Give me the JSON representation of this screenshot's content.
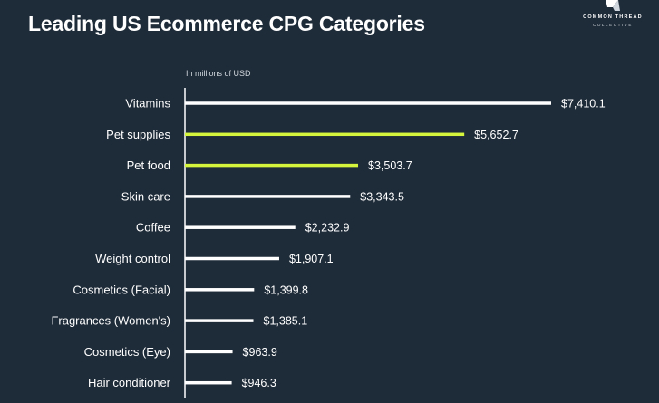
{
  "title": "Leading US Ecommerce CPG Categories",
  "logo": {
    "name": "COMMON THREAD",
    "sub": "COLLECTIVE"
  },
  "colors": {
    "background": "#1e2b38",
    "bar_default": "#ffffff",
    "bar_highlight": "#d4f53c",
    "axis": "#ffffff"
  },
  "chart_data": {
    "type": "bar",
    "orientation": "horizontal",
    "unit_label": "In millions of USD",
    "categories": [
      "Vitamins",
      "Pet supplies",
      "Pet food",
      "Skin care",
      "Coffee",
      "Weight control",
      "Cosmetics (Facial)",
      "Fragrances (Women's)",
      "Cosmetics (Eye)",
      "Hair conditioner"
    ],
    "values": [
      7410.1,
      5652.7,
      3503.7,
      3343.5,
      2232.9,
      1907.1,
      1399.8,
      1385.1,
      963.9,
      946.3
    ],
    "value_labels": [
      "$7,410.1",
      "$5,652.7",
      "$3,503.7",
      "$3,343.5",
      "$2,232.9",
      "$1,907.1",
      "$1,399.8",
      "$1,385.1",
      "$963.9",
      "$946.3"
    ],
    "highlighted": [
      "Pet supplies",
      "Pet food"
    ],
    "xlim": [
      0,
      7410.1
    ],
    "grid": false,
    "legend": "none"
  }
}
